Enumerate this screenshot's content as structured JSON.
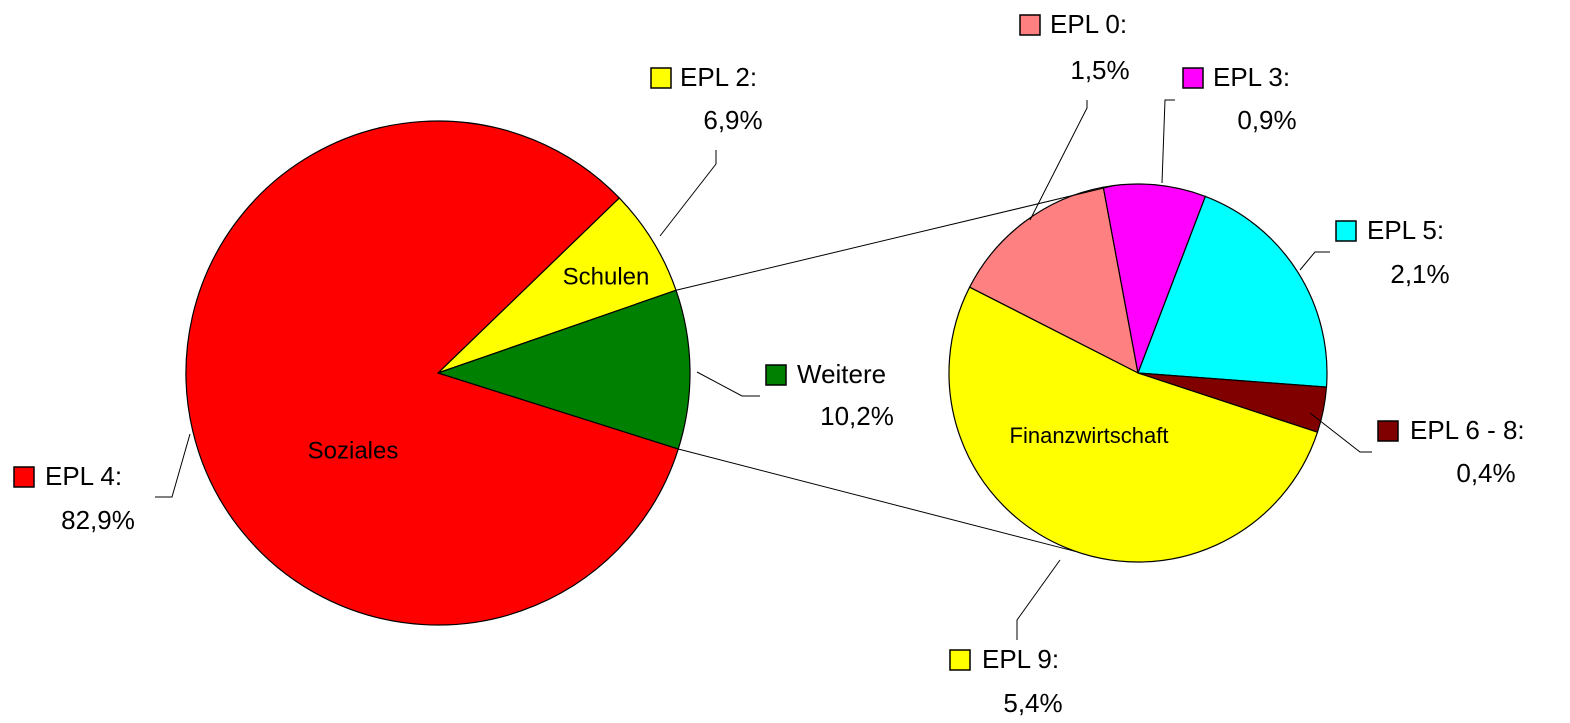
{
  "chart_data": [
    {
      "type": "pie",
      "categories": [
        "EPL 2:",
        "Weitere",
        "EPL 4:"
      ],
      "values": [
        6.9,
        10.2,
        82.9
      ],
      "value_labels": [
        "6,9%",
        "10,2%",
        "82,9%"
      ],
      "colors": [
        "#ffff00",
        "#008000",
        "#ff0000"
      ],
      "slice_labels": [
        "Schulen",
        null,
        "Soziales"
      ]
    },
    {
      "type": "pie",
      "categories": [
        "EPL 0:",
        "EPL 3:",
        "EPL 5:",
        "EPL 6 - 8:",
        "EPL 9:"
      ],
      "values": [
        1.5,
        0.9,
        2.1,
        0.4,
        5.4
      ],
      "value_labels": [
        "1,5%",
        "0,9%",
        "2,1%",
        "0,4%",
        "5,4%"
      ],
      "colors": [
        "#ff8080",
        "#ff00ff",
        "#00ffff",
        "#800000",
        "#ffff00"
      ],
      "annotation": "Finanzwirtschaft"
    }
  ]
}
